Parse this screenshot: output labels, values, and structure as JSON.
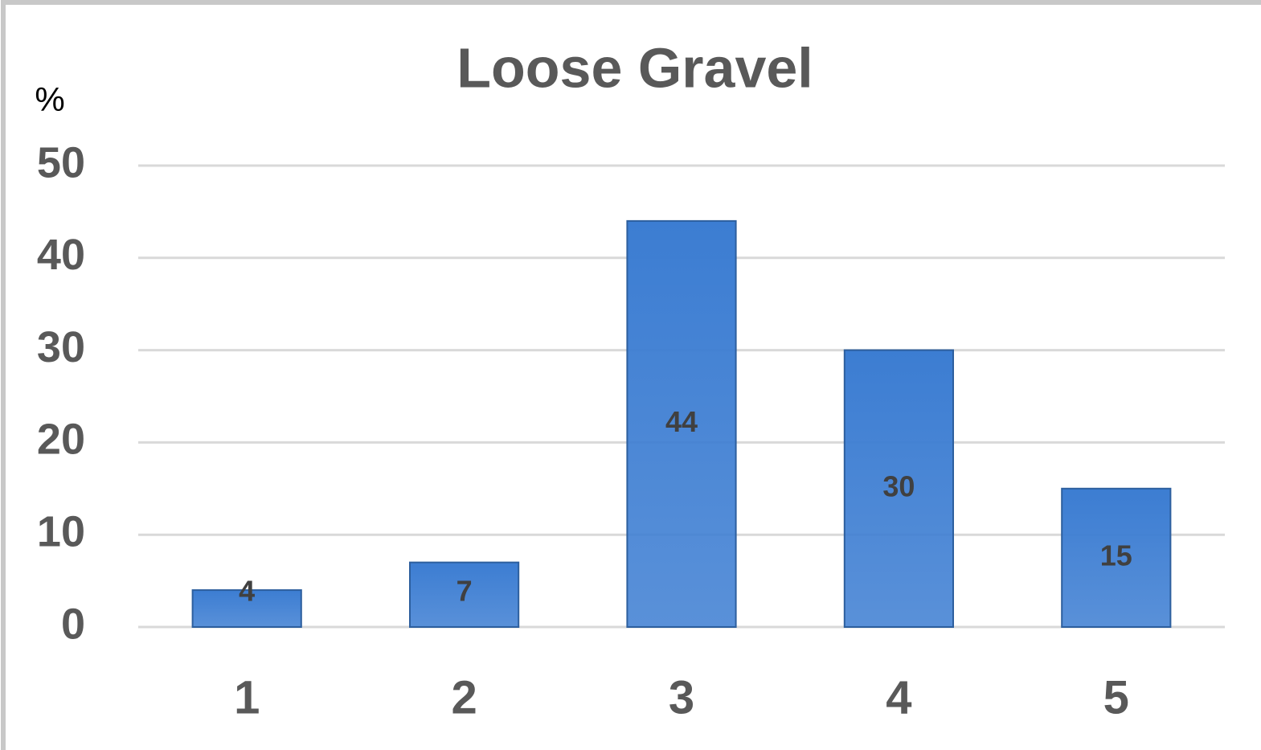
{
  "chart_data": {
    "type": "bar",
    "title": "Loose Gravel",
    "y_label": "%",
    "categories": [
      "1",
      "2",
      "3",
      "4",
      "5"
    ],
    "values": [
      4,
      7,
      44,
      30,
      15
    ],
    "color": "#3c7dd2",
    "ylim": [
      0,
      50
    ],
    "yticks": [
      0,
      10,
      20,
      30,
      40,
      50
    ],
    "grid": true,
    "data_labels": true
  }
}
